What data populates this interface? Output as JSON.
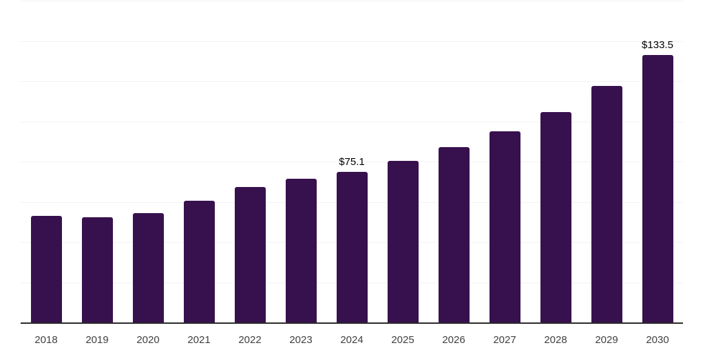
{
  "chart_data": {
    "type": "bar",
    "title": "",
    "xlabel": "",
    "ylabel": "",
    "categories": [
      "2018",
      "2019",
      "2020",
      "2021",
      "2022",
      "2023",
      "2024",
      "2025",
      "2026",
      "2027",
      "2028",
      "2029",
      "2030"
    ],
    "values": [
      53.4,
      52.5,
      54.8,
      61.0,
      67.8,
      71.9,
      75.1,
      80.7,
      87.5,
      95.4,
      104.9,
      117.9,
      133.5
    ],
    "data_labels": [
      {
        "category": "2024",
        "text": "$75.1"
      },
      {
        "category": "2030",
        "text": "$133.5"
      }
    ],
    "ylim": [
      0,
      160
    ],
    "grid_interval": 20,
    "grid": "horizontal",
    "y_tick_labels_shown": false,
    "legend": "none",
    "colors": {
      "bar": "#37114E",
      "axis_line": "#2B2B2B",
      "gridline": "#F2F2F2",
      "tick_label": "#3F3F3F",
      "data_label": "#000000",
      "background": "#FFFFFF"
    }
  }
}
